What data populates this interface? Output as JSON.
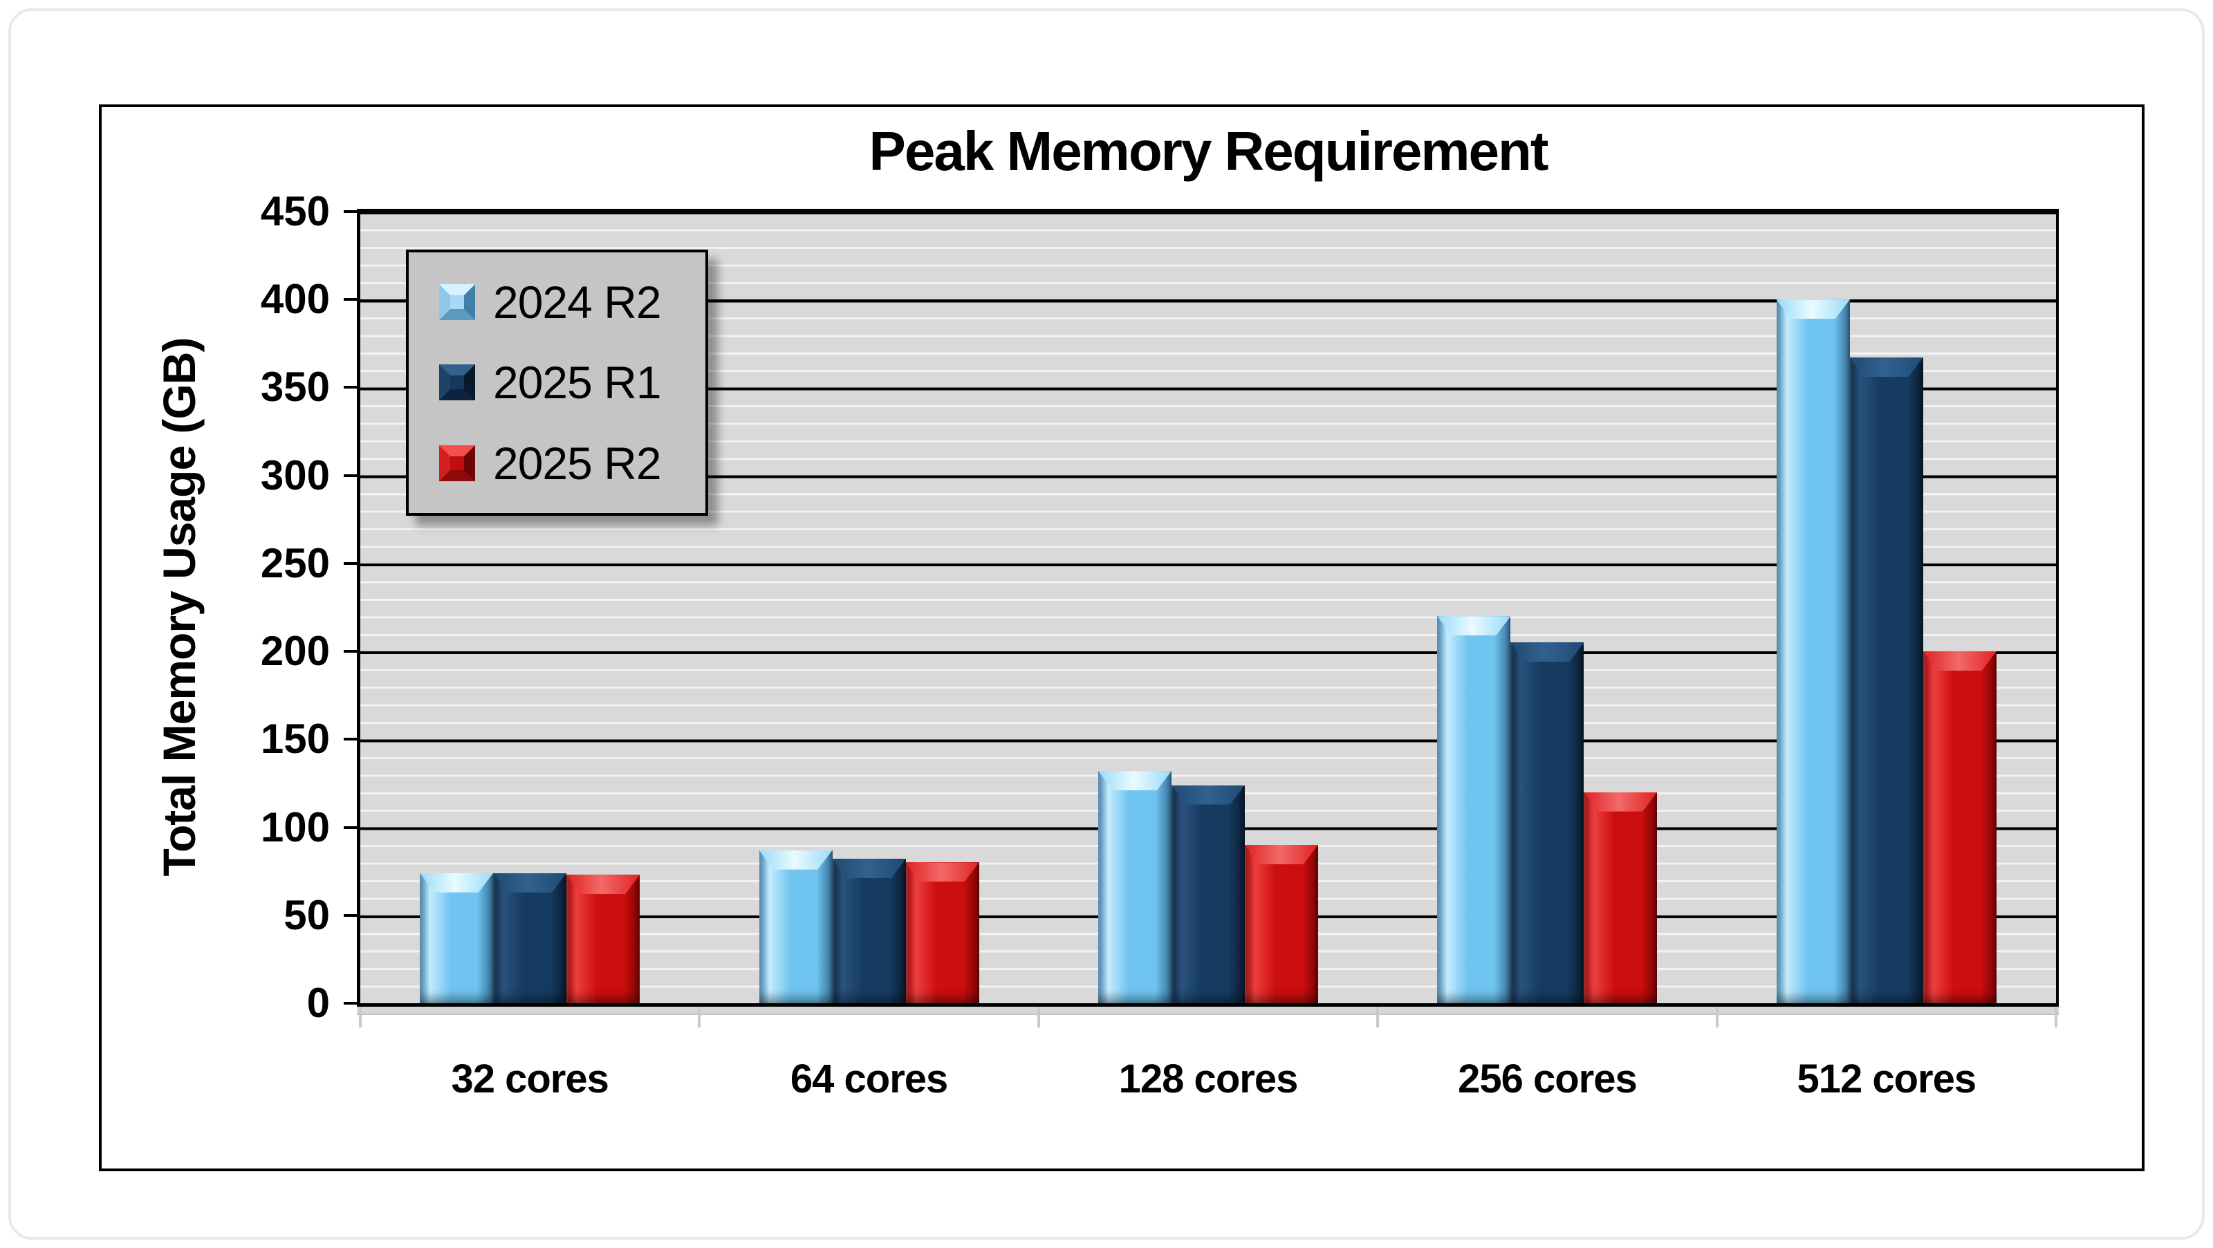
{
  "chart": {
    "title": "Peak Memory Requirement",
    "y_axis_title": "Total Memory Usage (GB)"
  },
  "chart_data": {
    "type": "bar",
    "title": "Peak Memory Requirement",
    "xlabel": "",
    "ylabel": "Total Memory Usage (GB)",
    "categories": [
      "32 cores",
      "64 cores",
      "128 cores",
      "256 cores",
      "512 cores"
    ],
    "series": [
      {
        "name": "2024 R2",
        "color": "#6fc4f0",
        "values": [
          74,
          87,
          132,
          220,
          400
        ]
      },
      {
        "name": "2025 R1",
        "color": "#17375e",
        "values": [
          74,
          82,
          124,
          205,
          367
        ]
      },
      {
        "name": "2025 R2",
        "color": "#c00d0d",
        "values": [
          73,
          80,
          90,
          120,
          200
        ]
      }
    ],
    "ylim": [
      0,
      450
    ],
    "y_major_step": 50,
    "y_minor_step": 10,
    "y_tick_labels": [
      "0",
      "50",
      "100",
      "150",
      "200",
      "250",
      "300",
      "350",
      "400",
      "450"
    ],
    "grid": "horizontal; major lines black every 50, minor lines white every 10 on gray plot background",
    "legend_position": "upper-left inside plot",
    "legend_entries": [
      "2024 R2",
      "2025 R1",
      "2025 R2"
    ]
  },
  "colors": {
    "plot_background": "#d9d9d9",
    "minor_gridline": "#f2f2f2",
    "major_gridline": "#000000",
    "legend_background": "#c5c5c5",
    "frame_border": "#000000",
    "card_border": "#e9e9e9",
    "series_light_blue": "#6fc4f0",
    "series_navy": "#17375e",
    "series_red": "#c00d0d"
  }
}
